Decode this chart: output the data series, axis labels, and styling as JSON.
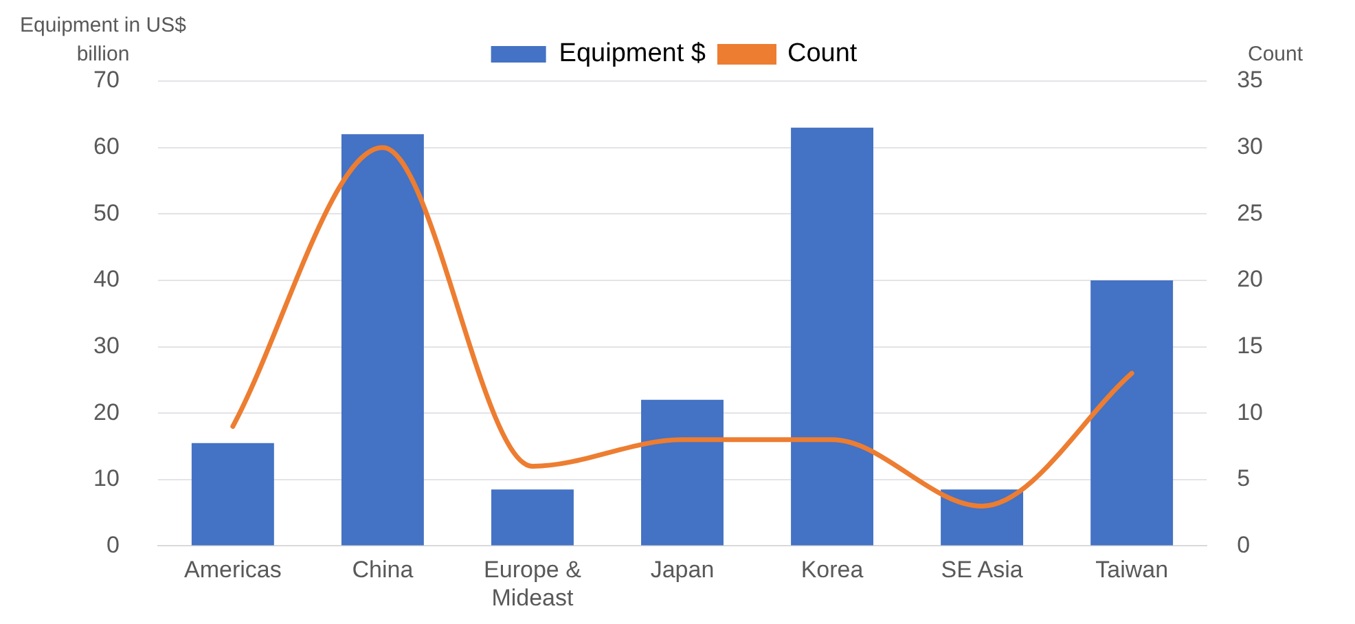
{
  "chart_data": {
    "type": "bar",
    "ylabel": "Equipment in US$ billion",
    "y2label": "Count",
    "categories": [
      "Americas",
      "China",
      "Europe & Mideast",
      "Japan",
      "Korea",
      "SE Asia",
      "Taiwan"
    ],
    "series": [
      {
        "name": "Equipment $",
        "color": "#4472c4",
        "values": [
          15.5,
          62,
          8.5,
          22,
          63,
          8.5,
          40
        ]
      },
      {
        "name": "Count",
        "type": "line",
        "axis": "y2",
        "color": "#ed7d31",
        "marker": "none",
        "values": [
          9,
          30,
          6,
          8,
          8,
          3,
          13
        ]
      }
    ],
    "ylim": [
      0,
      70
    ],
    "yticks": [
      0,
      10,
      20,
      30,
      40,
      50,
      60,
      70
    ],
    "y2lim": [
      0,
      35
    ],
    "y2ticks": [
      0,
      5,
      10,
      15,
      20,
      25,
      30,
      35
    ],
    "grid": "y",
    "legend": "top"
  }
}
